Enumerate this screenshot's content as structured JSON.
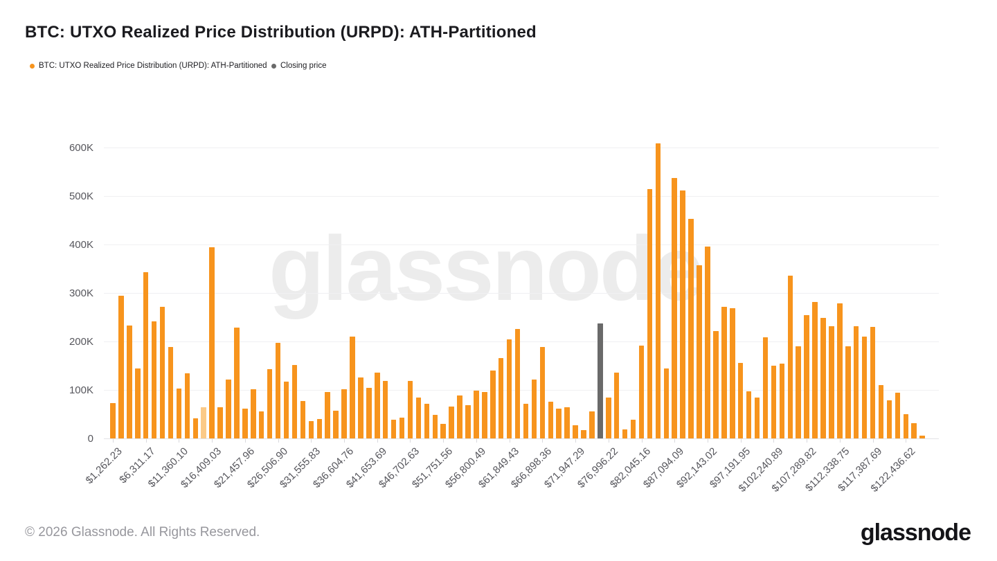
{
  "title": "BTC: UTXO Realized Price Distribution (URPD): ATH-Partitioned",
  "legend": {
    "series_label": "BTC: UTXO Realized Price Distribution (URPD): ATH-Partitioned",
    "closing_label": "Closing price"
  },
  "watermark": "glassnode",
  "footer": {
    "copyright": "© 2026 Glassnode. All Rights Reserved.",
    "logo": "glassnode"
  },
  "colors": {
    "bar": "#f7941d",
    "bar_faded": "#fbca88",
    "closing_bar": "#6a6a6a",
    "axis_text": "#56565c",
    "gridline": "#f0f0f2"
  },
  "chart_data": {
    "type": "bar",
    "title": "BTC: UTXO Realized Price Distribution (URPD): ATH-Partitioned",
    "xlabel": "",
    "ylabel": "",
    "unit": "K",
    "ylim": [
      0,
      600000
    ],
    "grid": true,
    "legend_position": "top-left",
    "y_tick_labels": [
      "0",
      "100K",
      "200K",
      "300K",
      "400K",
      "500K",
      "600K"
    ],
    "x_tick_labels": [
      "$1,262.23",
      "$6,311.17",
      "$11,360.10",
      "$16,409.03",
      "$21,457.96",
      "$26,506.90",
      "$31,555.83",
      "$36,604.76",
      "$41,653.69",
      "$46,702.63",
      "$51,751.56",
      "$56,800.49",
      "$61,849.43",
      "$66,898.36",
      "$71,947.29",
      "$76,996.22",
      "$82,045.16",
      "$87,094.09",
      "$92,143.02",
      "$97,191.95",
      "$102,240.89",
      "$107,289.82",
      "$112,338.75",
      "$117,387.69",
      "$122,436.62"
    ],
    "x_label_every_n_bars": 4,
    "bin_width_usd": 1262.23,
    "values_k": [
      73,
      295,
      233,
      145,
      343,
      241,
      271,
      188,
      103,
      134,
      41,
      64,
      394,
      64,
      122,
      228,
      61,
      101,
      56,
      143,
      197,
      117,
      152,
      77,
      36,
      40,
      96,
      57,
      102,
      210,
      126,
      104,
      136,
      119,
      39,
      43,
      119,
      84,
      72,
      48,
      30,
      66,
      88,
      69,
      98,
      96,
      140,
      166,
      204,
      226,
      72,
      122,
      189,
      76,
      61,
      65,
      27,
      17,
      56,
      237,
      84,
      136,
      18,
      39,
      191,
      515,
      609,
      144,
      537,
      512,
      453,
      357,
      396,
      222,
      271,
      268,
      156,
      97,
      85,
      209,
      150,
      155,
      336,
      190,
      255,
      282,
      249,
      231,
      279,
      190,
      231,
      210,
      230,
      110,
      79,
      94,
      50,
      31,
      6
    ],
    "closing_price_bar_index": 59,
    "faded_bar_index": 11,
    "series": [
      {
        "name": "BTC: UTXO Realized Price Distribution (URPD): ATH-Partitioned",
        "color": "#f7941d"
      },
      {
        "name": "Closing price",
        "color": "#6a6a6a"
      }
    ]
  }
}
